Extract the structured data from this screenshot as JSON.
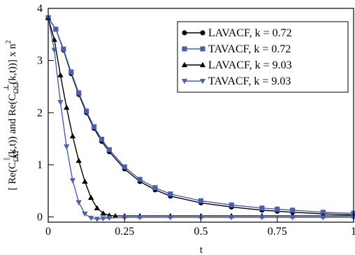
{
  "chart_data": {
    "type": "line",
    "xlabel": "t",
    "ylabel": "[ Re(C_ΩΩ^∥(k,t)) and Re(C_ΩΩ^⊥(k,t))] × n²",
    "ylabel_parts": {
      "p1": "[ Re(C",
      "sub1": "ΩΩ",
      "sup1": "||",
      "p2": "(k,t)) and Re(C",
      "sub2": "ΩΩ",
      "sup2": "⊥",
      "p3": "(k,t))] x n",
      "sup3": "2"
    },
    "xlim": [
      0,
      1
    ],
    "ylim": [
      -0.1,
      4
    ],
    "xticks": [
      0,
      0.25,
      0.5,
      0.75,
      1
    ],
    "xtick_labels": [
      "0",
      "0.25",
      "0.5",
      "0.75",
      "1"
    ],
    "yticks": [
      0,
      1,
      2,
      3,
      4
    ],
    "ytick_labels": [
      "0",
      "1",
      "2",
      "3",
      "4"
    ],
    "grid": false,
    "legend_position": "top-right",
    "series": [
      {
        "name": "LAVACF, k = 0.72",
        "color": "#000000",
        "marker": "circle",
        "x": [
          0,
          0.025,
          0.05,
          0.075,
          0.1,
          0.125,
          0.15,
          0.175,
          0.2,
          0.25,
          0.3,
          0.35,
          0.4,
          0.5,
          0.6,
          0.7,
          0.75,
          0.8,
          0.9,
          1.0
        ],
        "y": [
          3.82,
          3.6,
          3.2,
          2.75,
          2.35,
          2.0,
          1.7,
          1.45,
          1.25,
          0.92,
          0.68,
          0.52,
          0.4,
          0.27,
          0.19,
          0.13,
          0.11,
          0.09,
          0.06,
          0.04
        ]
      },
      {
        "name": "TAVACF, k = 0.72",
        "color": "#4a5fb0",
        "marker": "square",
        "x": [
          0,
          0.025,
          0.05,
          0.075,
          0.1,
          0.125,
          0.15,
          0.175,
          0.2,
          0.25,
          0.3,
          0.35,
          0.4,
          0.5,
          0.6,
          0.7,
          0.75,
          0.8,
          0.9,
          1.0
        ],
        "y": [
          3.82,
          3.6,
          3.22,
          2.78,
          2.38,
          2.03,
          1.73,
          1.49,
          1.29,
          0.96,
          0.72,
          0.56,
          0.44,
          0.31,
          0.23,
          0.17,
          0.15,
          0.13,
          0.09,
          0.07
        ]
      },
      {
        "name": "LAVACF, k = 9.03",
        "color": "#000000",
        "marker": "triangle-up",
        "x": [
          0,
          0.02,
          0.04,
          0.06,
          0.08,
          0.1,
          0.12,
          0.14,
          0.16,
          0.18,
          0.2,
          0.22,
          0.25,
          0.3,
          0.4,
          0.5,
          0.6,
          0.7,
          0.8,
          0.9,
          1.0
        ],
        "y": [
          3.82,
          3.4,
          2.72,
          2.1,
          1.55,
          1.08,
          0.68,
          0.37,
          0.17,
          0.07,
          0.03,
          0.02,
          0.02,
          0.02,
          0.02,
          0.02,
          0.02,
          0.02,
          0.02,
          0.02,
          0.02
        ]
      },
      {
        "name": "TAVACF, k = 9.03",
        "color": "#4a5fb0",
        "marker": "triangle-down",
        "x": [
          0,
          0.02,
          0.04,
          0.06,
          0.08,
          0.1,
          0.12,
          0.14,
          0.16,
          0.18,
          0.2,
          0.25,
          0.3,
          0.4,
          0.5,
          0.6,
          0.7,
          0.8,
          0.9,
          1.0
        ],
        "y": [
          3.82,
          3.2,
          2.2,
          1.35,
          0.7,
          0.28,
          0.06,
          -0.02,
          -0.04,
          -0.03,
          -0.02,
          -0.01,
          -0.01,
          -0.01,
          -0.01,
          -0.01,
          -0.01,
          -0.01,
          -0.01,
          -0.01
        ]
      }
    ]
  }
}
